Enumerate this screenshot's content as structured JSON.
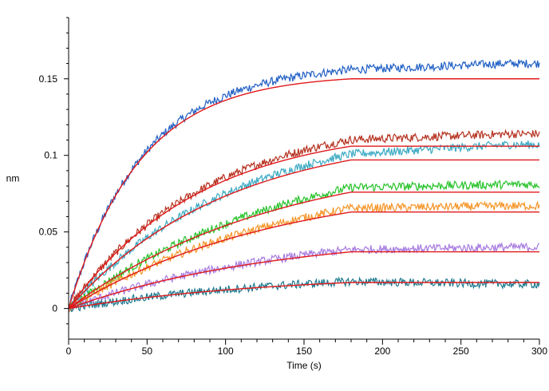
{
  "chart_data": {
    "type": "line",
    "xlabel": "Time (s)",
    "ylabel": "nm",
    "xlim": [
      0,
      300
    ],
    "ylim": [
      -0.02,
      0.19
    ],
    "x_ticks": [
      0,
      50,
      100,
      150,
      200,
      250,
      300
    ],
    "x_tick_labels": [
      "0",
      "50",
      "100",
      "150",
      "200",
      "250",
      "300"
    ],
    "y_ticks": [
      0,
      0.05,
      0.1,
      0.15
    ],
    "y_tick_labels": [
      "0",
      "0.05",
      "0.1",
      "0.15"
    ],
    "grid": false,
    "legend": "none",
    "fit_color": "#e0191b",
    "association_end_s": 180,
    "series": [
      {
        "color": "#1f5fc4",
        "plateau": 0.15,
        "final": 0.16
      },
      {
        "color": "#b5311f",
        "plateau": 0.106,
        "final": 0.114
      },
      {
        "color": "#3aa9c3",
        "plateau": 0.097,
        "final": 0.107
      },
      {
        "color": "#27c22a",
        "plateau": 0.076,
        "final": 0.081
      },
      {
        "color": "#f5962a",
        "plateau": 0.063,
        "final": 0.067
      },
      {
        "color": "#a77be0",
        "plateau": 0.037,
        "final": 0.04
      },
      {
        "color": "#1d7a8f",
        "plateau": 0.017,
        "final": 0.016
      }
    ]
  }
}
